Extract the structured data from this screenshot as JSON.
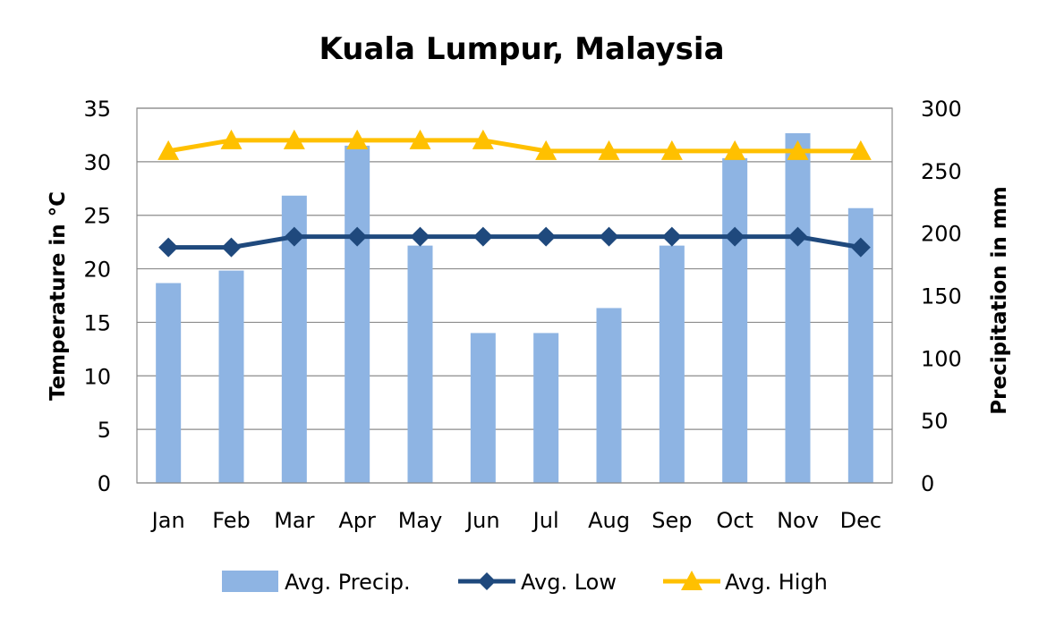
{
  "chart_data": {
    "type": "bar+line",
    "title": "Kuala Lumpur, Malaysia",
    "categories": [
      "Jan",
      "Feb",
      "Mar",
      "Apr",
      "May",
      "Jun",
      "Jul",
      "Aug",
      "Sep",
      "Oct",
      "Nov",
      "Dec"
    ],
    "y_left": {
      "label": "Temperature in °C",
      "range": [
        0,
        35
      ],
      "ticks": [
        "0",
        "5",
        "10",
        "15",
        "20",
        "25",
        "30",
        "35"
      ]
    },
    "y_right": {
      "label": "Precipitation in mm",
      "range": [
        0,
        300
      ],
      "ticks": [
        "0",
        "50",
        "100",
        "150",
        "200",
        "250",
        "300"
      ]
    },
    "grid": true,
    "legend_position": "bottom",
    "series": [
      {
        "name": "Avg. Precip.",
        "type": "bar",
        "axis": "right",
        "color": "#8eb4e3",
        "values": [
          160,
          170,
          230,
          270,
          190,
          120,
          120,
          140,
          190,
          260,
          280,
          220
        ]
      },
      {
        "name": "Avg. Low",
        "type": "line",
        "axis": "left",
        "marker": "diamond",
        "color": "#1f497d",
        "values": [
          22,
          22,
          23,
          23,
          23,
          23,
          23,
          23,
          23,
          23,
          23,
          22
        ]
      },
      {
        "name": "Avg. High",
        "type": "line",
        "axis": "left",
        "marker": "triangle",
        "color": "#ffc000",
        "values": [
          31,
          32,
          32,
          32,
          32,
          32,
          31,
          31,
          31,
          31,
          31,
          31
        ]
      }
    ]
  }
}
